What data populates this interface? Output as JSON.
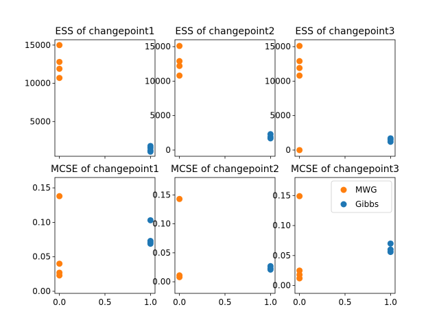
{
  "colors": {
    "MWG": "#ff7f0e",
    "Gibbs": "#1f77b4"
  },
  "chart_data": [
    {
      "type": "scatter",
      "title": "ESS of changepoint1",
      "xlim": [
        -0.05,
        1.05
      ],
      "ylim": [
        450,
        15700
      ],
      "xticks": [
        "0.0",
        "0.5",
        "1.0"
      ],
      "xticks_visible": false,
      "yticks": [
        5000,
        10000,
        15000
      ],
      "series": [
        {
          "name": "MWG",
          "x": [
            0,
            0,
            0,
            0
          ],
          "y": [
            15000,
            12800,
            11900,
            10700
          ]
        },
        {
          "name": "Gibbs",
          "x": [
            1,
            1,
            1,
            1
          ],
          "y": [
            1800,
            1550,
            1200,
            1050
          ]
        }
      ]
    },
    {
      "type": "scatter",
      "title": "ESS of changepoint2",
      "xlim": [
        -0.05,
        1.05
      ],
      "ylim": [
        -900,
        16000
      ],
      "xticks": [
        "0.0",
        "0.5",
        "1.0"
      ],
      "xticks_visible": false,
      "yticks": [
        0,
        5000,
        10000,
        15000
      ],
      "series": [
        {
          "name": "MWG",
          "x": [
            0,
            0,
            0,
            0
          ],
          "y": [
            15100,
            12900,
            12200,
            10800
          ]
        },
        {
          "name": "Gibbs",
          "x": [
            1,
            1,
            1
          ],
          "y": [
            2300,
            1900,
            1700
          ]
        }
      ]
    },
    {
      "type": "scatter",
      "title": "ESS of changepoint3",
      "xlim": [
        -0.05,
        1.05
      ],
      "ylim": [
        -900,
        16000
      ],
      "xticks": [
        "0.0",
        "0.5",
        "1.0"
      ],
      "xticks_visible": false,
      "yticks": [
        0,
        5000,
        10000,
        15000
      ],
      "series": [
        {
          "name": "MWG",
          "x": [
            0,
            0,
            0,
            0,
            0
          ],
          "y": [
            15100,
            12900,
            11900,
            10800,
            0
          ]
        },
        {
          "name": "Gibbs",
          "x": [
            1,
            1,
            1
          ],
          "y": [
            1700,
            1500,
            1200
          ]
        }
      ]
    },
    {
      "type": "scatter",
      "title": "MCSE of changepoint1",
      "xlim": [
        -0.05,
        1.05
      ],
      "ylim": [
        -0.003,
        0.165
      ],
      "xticks": [
        "0.0",
        "0.5",
        "1.0"
      ],
      "xticks_visible": true,
      "yticks": [
        "0.00",
        "0.05",
        "0.10",
        "0.15"
      ],
      "ytick_values": [
        0,
        0.05,
        0.1,
        0.15
      ],
      "series": [
        {
          "name": "MWG",
          "x": [
            0,
            0,
            0,
            0
          ],
          "y": [
            0.138,
            0.04,
            0.027,
            0.023
          ]
        },
        {
          "name": "Gibbs",
          "x": [
            1,
            1,
            1,
            1
          ],
          "y": [
            0.103,
            0.073,
            0.071,
            0.069
          ]
        }
      ]
    },
    {
      "type": "scatter",
      "title": "MCSE of changepoint2",
      "xlim": [
        -0.05,
        1.05
      ],
      "ylim": [
        -0.02,
        0.18
      ],
      "xticks": [
        "0.0",
        "0.5",
        "1.0"
      ],
      "xticks_visible": true,
      "yticks": [
        "0.00",
        "0.05",
        "0.10",
        "0.15"
      ],
      "ytick_values": [
        0,
        0.05,
        0.1,
        0.15
      ],
      "series": [
        {
          "name": "MWG",
          "x": [
            0,
            0,
            0
          ],
          "y": [
            0.143,
            0.011,
            0.008
          ]
        },
        {
          "name": "Gibbs",
          "x": [
            1,
            1,
            1
          ],
          "y": [
            0.027,
            0.023,
            0.021
          ]
        }
      ]
    },
    {
      "type": "scatter",
      "title": "MCSE of changepoint3",
      "xlim": [
        -0.05,
        1.05
      ],
      "ylim": [
        -0.013,
        0.18
      ],
      "xticks": [
        "0.0",
        "0.5",
        "1.0"
      ],
      "xticks_visible": true,
      "yticks": [
        "0.00",
        "0.05",
        "0.10",
        "0.15"
      ],
      "ytick_values": [
        0,
        0.05,
        0.1,
        0.15
      ],
      "legend": {
        "placement": "top-right",
        "entries": [
          "MWG",
          "Gibbs"
        ]
      },
      "series": [
        {
          "name": "MWG",
          "x": [
            0,
            0,
            0,
            0
          ],
          "y": [
            0.149,
            0.025,
            0.018,
            0.012
          ]
        },
        {
          "name": "Gibbs",
          "x": [
            1,
            1,
            1
          ],
          "y": [
            0.07,
            0.06,
            0.056
          ]
        }
      ]
    }
  ]
}
